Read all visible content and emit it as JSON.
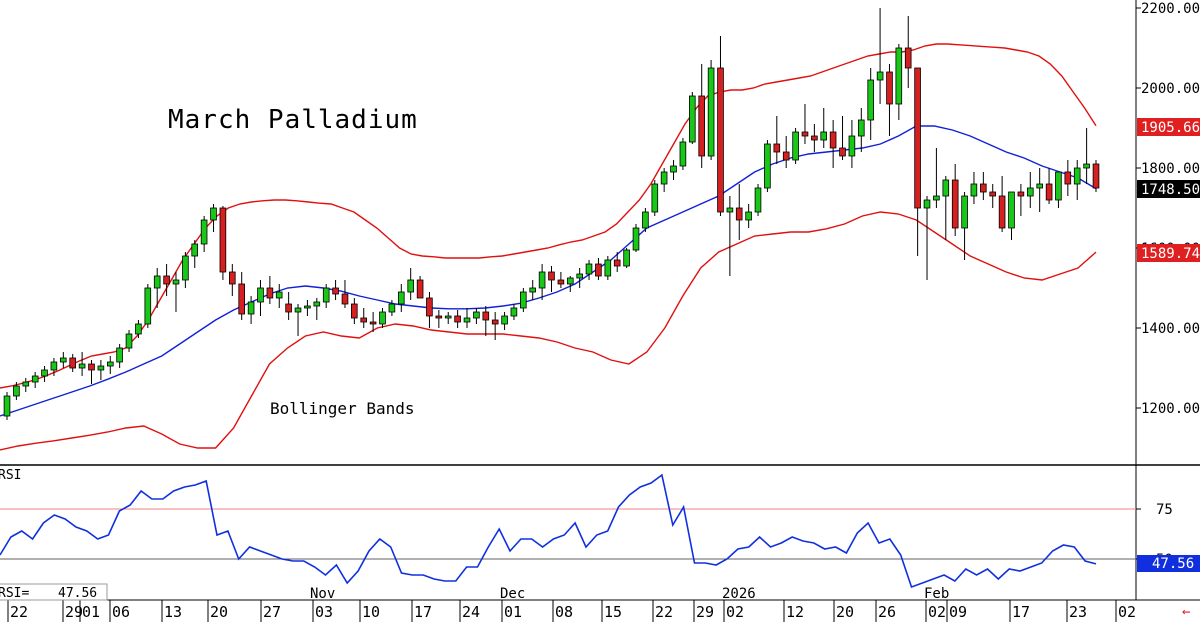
{
  "title": "March Palladium",
  "overlay_label": "Bollinger Bands",
  "colors": {
    "up": "#18c718",
    "down": "#d42020",
    "band": "#e01010",
    "mid": "#1020d8",
    "rsi": "#1030e0",
    "rsi_ref75": "#f08080",
    "rsi_ref50": "#606060",
    "price_box_last": "#000000",
    "price_box_upper": "#e02020",
    "price_box_lower": "#e02020",
    "rsi_box": "#1030e0",
    "grid": "#000000"
  },
  "price_axis": {
    "ticks": [
      "1200.00",
      "1400.00",
      "1600.00",
      "1800.00",
      "2000.00",
      "2200.00"
    ],
    "boxes": {
      "upper_band": "1905.66",
      "last": "1748.50",
      "lower_band": "1589.74"
    }
  },
  "rsi_panel": {
    "label": "RSI",
    "readout_label": "RSI=",
    "readout_value": "47.56",
    "ticks": [
      "75",
      "50"
    ],
    "box_value": "47.56"
  },
  "x_axis": {
    "day_labels": [
      "22",
      "29",
      "01",
      "06",
      "13",
      "20",
      "27",
      "03",
      "10",
      "17",
      "24",
      "01",
      "08",
      "15",
      "22",
      "29",
      "02",
      "12",
      "20",
      "26",
      "02",
      "09",
      "17",
      "23",
      "02"
    ],
    "month_labels": [
      "Nov",
      "Dec",
      "2026",
      "Feb"
    ]
  },
  "chart_data": [
    {
      "type": "candlestick",
      "title": "March Palladium",
      "annotations": [
        "Bollinger Bands"
      ],
      "ylim": [
        1050,
        2200
      ],
      "candles": [
        [
          1180,
          1240,
          1170,
          1230
        ],
        [
          1230,
          1265,
          1220,
          1255
        ],
        [
          1255,
          1275,
          1240,
          1265
        ],
        [
          1265,
          1290,
          1250,
          1280
        ],
        [
          1280,
          1305,
          1265,
          1295
        ],
        [
          1295,
          1325,
          1280,
          1315
        ],
        [
          1315,
          1340,
          1300,
          1325
        ],
        [
          1325,
          1335,
          1290,
          1300
        ],
        [
          1300,
          1340,
          1280,
          1310
        ],
        [
          1310,
          1320,
          1260,
          1295
        ],
        [
          1295,
          1320,
          1270,
          1305
        ],
        [
          1305,
          1330,
          1285,
          1315
        ],
        [
          1315,
          1360,
          1300,
          1350
        ],
        [
          1350,
          1395,
          1340,
          1385
        ],
        [
          1385,
          1420,
          1375,
          1410
        ],
        [
          1410,
          1510,
          1400,
          1500
        ],
        [
          1500,
          1550,
          1450,
          1530
        ],
        [
          1530,
          1560,
          1480,
          1510
        ],
        [
          1510,
          1540,
          1440,
          1520
        ],
        [
          1520,
          1590,
          1500,
          1580
        ],
        [
          1580,
          1620,
          1550,
          1610
        ],
        [
          1610,
          1680,
          1590,
          1670
        ],
        [
          1670,
          1710,
          1640,
          1700
        ],
        [
          1700,
          1705,
          1520,
          1540
        ],
        [
          1540,
          1560,
          1480,
          1510
        ],
        [
          1510,
          1540,
          1420,
          1435
        ],
        [
          1435,
          1480,
          1410,
          1465
        ],
        [
          1465,
          1520,
          1430,
          1500
        ],
        [
          1500,
          1530,
          1460,
          1475
        ],
        [
          1475,
          1510,
          1450,
          1490
        ],
        [
          1460,
          1490,
          1420,
          1440
        ],
        [
          1440,
          1460,
          1380,
          1450
        ],
        [
          1450,
          1470,
          1430,
          1455
        ],
        [
          1455,
          1475,
          1420,
          1465
        ],
        [
          1465,
          1510,
          1450,
          1500
        ],
        [
          1500,
          1520,
          1470,
          1485
        ],
        [
          1485,
          1520,
          1450,
          1460
        ],
        [
          1460,
          1475,
          1410,
          1425
        ],
        [
          1425,
          1450,
          1400,
          1415
        ],
        [
          1415,
          1440,
          1390,
          1410
        ],
        [
          1410,
          1450,
          1400,
          1440
        ],
        [
          1440,
          1470,
          1430,
          1460
        ],
        [
          1460,
          1510,
          1440,
          1490
        ],
        [
          1490,
          1550,
          1470,
          1520
        ],
        [
          1520,
          1530,
          1480,
          1475
        ],
        [
          1475,
          1490,
          1400,
          1430
        ],
        [
          1430,
          1445,
          1400,
          1425
        ],
        [
          1425,
          1440,
          1410,
          1430
        ],
        [
          1430,
          1445,
          1400,
          1415
        ],
        [
          1415,
          1450,
          1400,
          1425
        ],
        [
          1425,
          1450,
          1410,
          1440
        ],
        [
          1440,
          1455,
          1380,
          1420
        ],
        [
          1420,
          1440,
          1370,
          1410
        ],
        [
          1410,
          1440,
          1395,
          1430
        ],
        [
          1430,
          1460,
          1420,
          1450
        ],
        [
          1450,
          1500,
          1440,
          1490
        ],
        [
          1490,
          1520,
          1470,
          1500
        ],
        [
          1500,
          1560,
          1470,
          1540
        ],
        [
          1540,
          1555,
          1490,
          1520
        ],
        [
          1520,
          1540,
          1500,
          1510
        ],
        [
          1510,
          1530,
          1490,
          1525
        ],
        [
          1525,
          1550,
          1500,
          1535
        ],
        [
          1535,
          1570,
          1520,
          1560
        ],
        [
          1560,
          1575,
          1520,
          1530
        ],
        [
          1530,
          1580,
          1520,
          1570
        ],
        [
          1570,
          1590,
          1540,
          1555
        ],
        [
          1555,
          1600,
          1550,
          1595
        ],
        [
          1595,
          1660,
          1590,
          1650
        ],
        [
          1650,
          1700,
          1640,
          1690
        ],
        [
          1690,
          1770,
          1680,
          1760
        ],
        [
          1760,
          1800,
          1740,
          1790
        ],
        [
          1790,
          1820,
          1770,
          1805
        ],
        [
          1805,
          1875,
          1795,
          1865
        ],
        [
          1865,
          1990,
          1860,
          1980
        ],
        [
          1980,
          2060,
          1800,
          1830
        ],
        [
          1830,
          2070,
          1820,
          2050
        ],
        [
          2050,
          2130,
          1680,
          1690
        ],
        [
          1690,
          1730,
          1530,
          1700
        ],
        [
          1700,
          1760,
          1620,
          1670
        ],
        [
          1670,
          1710,
          1650,
          1690
        ],
        [
          1690,
          1760,
          1680,
          1750
        ],
        [
          1750,
          1870,
          1740,
          1860
        ],
        [
          1860,
          1930,
          1810,
          1840
        ],
        [
          1840,
          1880,
          1800,
          1820
        ],
        [
          1820,
          1900,
          1810,
          1890
        ],
        [
          1890,
          1960,
          1860,
          1880
        ],
        [
          1880,
          1910,
          1840,
          1870
        ],
        [
          1870,
          1950,
          1850,
          1890
        ],
        [
          1890,
          1920,
          1800,
          1850
        ],
        [
          1850,
          1930,
          1820,
          1830
        ],
        [
          1830,
          1920,
          1800,
          1880
        ],
        [
          1880,
          1950,
          1840,
          1920
        ],
        [
          1920,
          2050,
          1870,
          2020
        ],
        [
          2020,
          2200,
          1960,
          2040
        ],
        [
          2040,
          2060,
          1880,
          1960
        ],
        [
          1960,
          2110,
          1920,
          2100
        ],
        [
          2100,
          2180,
          2000,
          2050
        ],
        [
          2050,
          2050,
          1580,
          1700
        ],
        [
          1700,
          1730,
          1520,
          1720
        ],
        [
          1720,
          1850,
          1700,
          1730
        ],
        [
          1730,
          1780,
          1620,
          1770
        ],
        [
          1770,
          1810,
          1630,
          1650
        ],
        [
          1650,
          1740,
          1570,
          1730
        ],
        [
          1730,
          1790,
          1710,
          1760
        ],
        [
          1760,
          1790,
          1720,
          1740
        ],
        [
          1740,
          1760,
          1700,
          1730
        ],
        [
          1730,
          1780,
          1640,
          1650
        ],
        [
          1650,
          1740,
          1620,
          1740
        ],
        [
          1740,
          1760,
          1680,
          1730
        ],
        [
          1730,
          1790,
          1700,
          1750
        ],
        [
          1750,
          1800,
          1690,
          1760
        ],
        [
          1760,
          1800,
          1710,
          1720
        ],
        [
          1720,
          1790,
          1700,
          1790
        ],
        [
          1790,
          1820,
          1730,
          1760
        ],
        [
          1760,
          1820,
          1720,
          1800
        ],
        [
          1800,
          1900,
          1760,
          1810
        ],
        [
          1810,
          1820,
          1740,
          1750
        ]
      ],
      "upper_band": [
        1250,
        1255,
        1262,
        1270,
        1280,
        1292,
        1305,
        1318,
        1330,
        1335,
        1340,
        1350,
        1380,
        1420,
        1470,
        1520,
        1570,
        1610,
        1650,
        1680,
        1700,
        1710,
        1715,
        1718,
        1720,
        1720,
        1718,
        1715,
        1712,
        1710,
        1700,
        1690,
        1670,
        1650,
        1625,
        1600,
        1585,
        1580,
        1578,
        1575,
        1575,
        1575,
        1575,
        1578,
        1580,
        1585,
        1590,
        1595,
        1600,
        1608,
        1615,
        1620,
        1630,
        1640,
        1660,
        1690,
        1720,
        1760,
        1810,
        1860,
        1910,
        1950,
        1980,
        1990,
        1995,
        1995,
        2000,
        2010,
        2015,
        2020,
        2025,
        2030,
        2040,
        2050,
        2060,
        2070,
        2080,
        2085,
        2090,
        2090,
        2095,
        2105,
        2110,
        2110,
        2108,
        2106,
        2104,
        2102,
        2100,
        2095,
        2090,
        2080,
        2060,
        2030,
        1990,
        1950,
        1905.66
      ],
      "middle_band": [
        1180,
        1195,
        1210,
        1225,
        1240,
        1255,
        1272,
        1290,
        1310,
        1330,
        1360,
        1390,
        1420,
        1445,
        1465,
        1485,
        1500,
        1505,
        1500,
        1492,
        1480,
        1470,
        1460,
        1455,
        1450,
        1448,
        1448,
        1450,
        1455,
        1462,
        1475,
        1490,
        1510,
        1540,
        1570,
        1610,
        1650,
        1670,
        1690,
        1710,
        1730,
        1760,
        1790,
        1810,
        1825,
        1835,
        1840,
        1845,
        1850,
        1860,
        1880,
        1905,
        1905,
        1895,
        1880,
        1860,
        1840,
        1825,
        1805,
        1790,
        1775,
        1748.5
      ],
      "lower_band": [
        1095,
        1105,
        1112,
        1118,
        1125,
        1132,
        1140,
        1150,
        1155,
        1135,
        1110,
        1100,
        1100,
        1150,
        1230,
        1310,
        1350,
        1380,
        1390,
        1380,
        1375,
        1400,
        1410,
        1405,
        1395,
        1390,
        1385,
        1385,
        1385,
        1380,
        1375,
        1365,
        1350,
        1340,
        1320,
        1310,
        1340,
        1400,
        1480,
        1550,
        1590,
        1610,
        1630,
        1635,
        1640,
        1640,
        1648,
        1660,
        1680,
        1690,
        1685,
        1670,
        1640,
        1610,
        1580,
        1560,
        1540,
        1525,
        1520,
        1535,
        1550,
        1589.74
      ],
      "last": 1748.5
    },
    {
      "type": "line",
      "title": "RSI",
      "ylim": [
        35,
        100
      ],
      "reference_lines": [
        75,
        50
      ],
      "values": [
        52,
        61,
        64,
        60,
        68,
        72,
        70,
        66,
        64,
        60,
        62,
        74,
        77,
        84,
        80,
        80,
        84,
        86,
        87,
        89,
        62,
        64,
        50,
        56,
        54,
        52,
        50,
        49,
        49,
        46,
        42,
        47,
        38,
        44,
        54,
        60,
        56,
        43,
        42,
        42,
        40,
        39,
        39,
        46,
        46,
        56,
        65,
        54,
        60,
        60,
        56,
        60,
        62,
        68,
        56,
        62,
        64,
        76,
        82,
        86,
        88,
        92,
        67,
        76,
        48,
        48,
        47,
        50,
        55,
        56,
        61,
        56,
        58,
        61,
        59,
        58,
        55,
        56,
        53,
        63,
        68,
        58,
        60,
        52,
        36,
        38,
        40,
        42,
        39,
        45,
        42,
        45,
        40,
        45,
        44,
        46,
        48,
        54,
        57,
        56,
        49,
        47.56
      ],
      "last": 47.56
    }
  ]
}
